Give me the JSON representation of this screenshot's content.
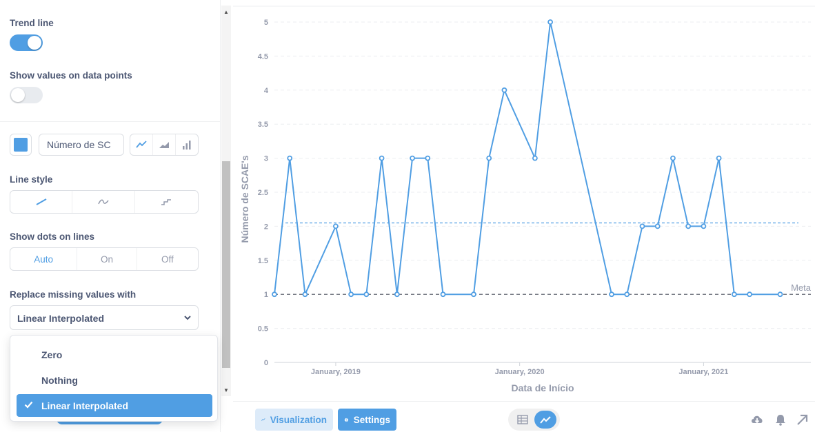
{
  "settings": {
    "trend_line": {
      "label": "Trend line",
      "enabled": true
    },
    "show_values": {
      "label": "Show values on data points",
      "enabled": false
    },
    "series": {
      "color": "#509ee3",
      "name": "Número de SC",
      "display_options": [
        "line-icon",
        "area-icon",
        "bar-icon"
      ]
    },
    "line_style": {
      "label": "Line style",
      "options": [
        "linear-icon",
        "curved-icon",
        "step-icon"
      ],
      "selected": 0
    },
    "show_dots": {
      "label": "Show dots on lines",
      "options": [
        "Auto",
        "On",
        "Off"
      ],
      "selected": "Auto"
    },
    "missing_values": {
      "label": "Replace missing values with",
      "selected": "Linear Interpolated",
      "options": [
        "Zero",
        "Nothing",
        "Linear Interpolated"
      ]
    }
  },
  "chart_data": {
    "type": "line",
    "title": "",
    "xlabel": "Data de Início",
    "ylabel": "Número de SCAE's",
    "ylim": [
      0,
      5
    ],
    "y_ticks": [
      "0",
      "0.5",
      "1",
      "1.5",
      "2",
      "2.5",
      "3",
      "3.5",
      "4",
      "4.5",
      "5"
    ],
    "x_tick_labels": [
      "January, 2019",
      "January, 2020",
      "January, 2021"
    ],
    "x_range": [
      "2018-09",
      "2021-08"
    ],
    "series": [
      {
        "color": "#509ee3",
        "x": [
          "2018-09",
          "2018-10",
          "2018-11",
          "2019-01",
          "2019-02",
          "2019-03",
          "2019-04",
          "2019-05",
          "2019-06",
          "2019-07",
          "2019-08",
          "2019-10",
          "2019-11",
          "2019-12",
          "2020-02",
          "2020-03",
          "2020-07",
          "2020-08",
          "2020-09",
          "2020-10",
          "2020-11",
          "2020-12",
          "2021-01",
          "2021-02",
          "2021-03",
          "2021-04",
          "2021-06"
        ],
        "values": [
          1,
          3,
          1,
          2,
          1,
          1,
          3,
          1,
          3,
          3,
          1,
          1,
          3,
          4,
          3,
          5,
          1,
          1,
          2,
          2,
          3,
          2,
          2,
          3,
          1,
          1,
          1
        ]
      }
    ],
    "trend_line": {
      "value": 2.05,
      "color": "#509ee3"
    },
    "goal": {
      "label": "Meta",
      "value": 1
    },
    "grid": true
  },
  "footer": {
    "visualization_label": "Visualization",
    "settings_label": "Settings",
    "view_modes": [
      "table-icon",
      "line-chart-icon"
    ],
    "active_view": "line-chart-icon"
  },
  "colors": {
    "accent": "#509ee3",
    "text": "#4c5773",
    "muted": "#949aab"
  }
}
